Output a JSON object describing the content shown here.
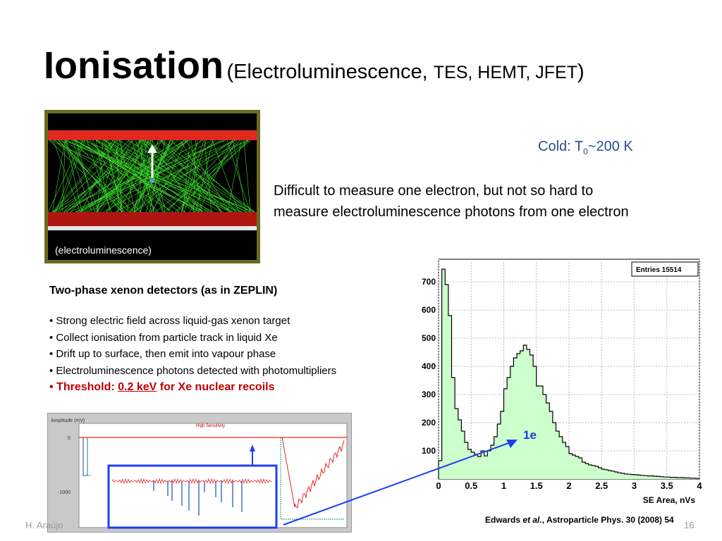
{
  "title": {
    "main": "Ionisation",
    "paren_open": "(Electroluminescence, ",
    "techs": "TES, HEMT, JFET",
    "paren_close": ")"
  },
  "sim_image": {
    "caption": "(electroluminescence)"
  },
  "cold": {
    "prefix": "Cold: T",
    "subscript": "0",
    "suffix": "~200 K"
  },
  "difficulty_text": {
    "line1": "Difficult to measure one electron, but not so hard to",
    "line2": "measure electroluminescence photons from one electron"
  },
  "two_phase": {
    "heading": "Two-phase xenon detectors (as in ZEPLIN)",
    "bullets": [
      "• Strong electric field across liquid-gas xenon target",
      "• Collect ionisation from particle track in liquid Xe",
      "• Drift up to surface, then emit into vapour phase",
      "• Electroluminescence photons detected with photomultipliers"
    ],
    "threshold_prefix": "• Threshold:  ",
    "threshold_value": "0.2 keV",
    "threshold_suffix": " for Xe nuclear recoils"
  },
  "scope_plot": {
    "ylabel": "Amplitude (mV)",
    "legend": "High Sensitivity",
    "tick_0": "0",
    "tick_1000": "-1000"
  },
  "chart_data": {
    "type": "bar",
    "xlabel": "SE Area, nVs",
    "ylabel": "",
    "stats": "Entries  15514",
    "xlim": [
      0,
      4
    ],
    "ylim": [
      0,
      780
    ],
    "xticks": [
      "0",
      "0.5",
      "1",
      "1.5",
      "2",
      "2.5",
      "3",
      "3.5",
      "4"
    ],
    "yticks": [
      "100",
      "200",
      "300",
      "400",
      "500",
      "600",
      "700"
    ],
    "annotation": "1e",
    "bin_width": 0.05,
    "bins_x": [
      0.0,
      0.05,
      0.1,
      0.15,
      0.2,
      0.25,
      0.3,
      0.35,
      0.4,
      0.45,
      0.5,
      0.55,
      0.6,
      0.65,
      0.7,
      0.75,
      0.8,
      0.85,
      0.9,
      0.95,
      1.0,
      1.05,
      1.1,
      1.15,
      1.2,
      1.25,
      1.3,
      1.35,
      1.4,
      1.45,
      1.5,
      1.55,
      1.6,
      1.65,
      1.7,
      1.75,
      1.8,
      1.85,
      1.9,
      1.95,
      2.0,
      2.05,
      2.1,
      2.15,
      2.2,
      2.25,
      2.3,
      2.35,
      2.4,
      2.45,
      2.5,
      2.55,
      2.6,
      2.65,
      2.7,
      2.75,
      2.8,
      2.85,
      2.9,
      2.95,
      3.0,
      3.05,
      3.1,
      3.15,
      3.2,
      3.25,
      3.3,
      3.35,
      3.4,
      3.45,
      3.5,
      3.55,
      3.6,
      3.65,
      3.7,
      3.75,
      3.8,
      3.85,
      3.9,
      3.95
    ],
    "values": [
      65,
      745,
      690,
      580,
      360,
      250,
      210,
      170,
      130,
      105,
      95,
      88,
      80,
      100,
      82,
      100,
      120,
      150,
      195,
      240,
      320,
      360,
      400,
      430,
      445,
      455,
      475,
      460,
      440,
      400,
      330,
      330,
      300,
      270,
      240,
      200,
      170,
      150,
      130,
      115,
      90,
      85,
      80,
      75,
      60,
      55,
      50,
      48,
      45,
      40,
      35,
      33,
      30,
      28,
      25,
      22,
      20,
      18,
      17,
      16,
      15,
      14,
      13,
      12,
      11,
      11,
      10,
      9,
      8,
      7,
      7,
      6,
      6,
      5,
      5,
      4,
      4,
      3,
      3,
      2
    ],
    "fill_color": "#ccffcc",
    "line_color": "#000000"
  },
  "citation": {
    "author": "Edwards ",
    "etal": "et al.",
    "rest": ",  Astroparticle Phys. 30 (2008) 54"
  },
  "footer": {
    "author": "H. Araújo",
    "page": "16"
  },
  "colors": {
    "arrow": "#1e3ce0",
    "threshold": "#c00000",
    "cold": "#2a4f8f"
  }
}
